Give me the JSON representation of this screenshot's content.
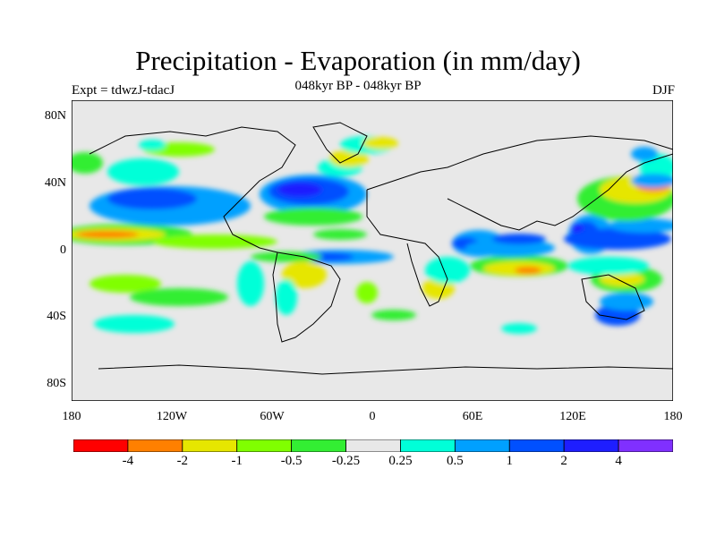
{
  "header": {
    "title": "Precipitation - Evaporation (in mm/day)",
    "subtitle": "048kyr BP - 048kyr BP",
    "experiment": "Expt = tdwzJ-tdacJ",
    "season": "DJF"
  },
  "axes": {
    "lat_labels": [
      "80N",
      "40N",
      "0",
      "40S",
      "80S"
    ],
    "lon_labels": [
      "180",
      "120W",
      "60W",
      "0",
      "60E",
      "120E",
      "180"
    ]
  },
  "colorbar": {
    "colors": [
      "#ff0000",
      "#ff8000",
      "#e6e600",
      "#80ff00",
      "#33ee33",
      "#e8e8e8",
      "#00ffd8",
      "#00a0ff",
      "#0050ff",
      "#1e1eff",
      "#8030ff"
    ],
    "labels": [
      "-4",
      "-2",
      "-1",
      "-0.5",
      "-0.25",
      "0.25",
      "0.5",
      "1",
      "2",
      "4"
    ]
  },
  "colors": {
    "background": "#e8e8e8",
    "coast": "#000000"
  }
}
